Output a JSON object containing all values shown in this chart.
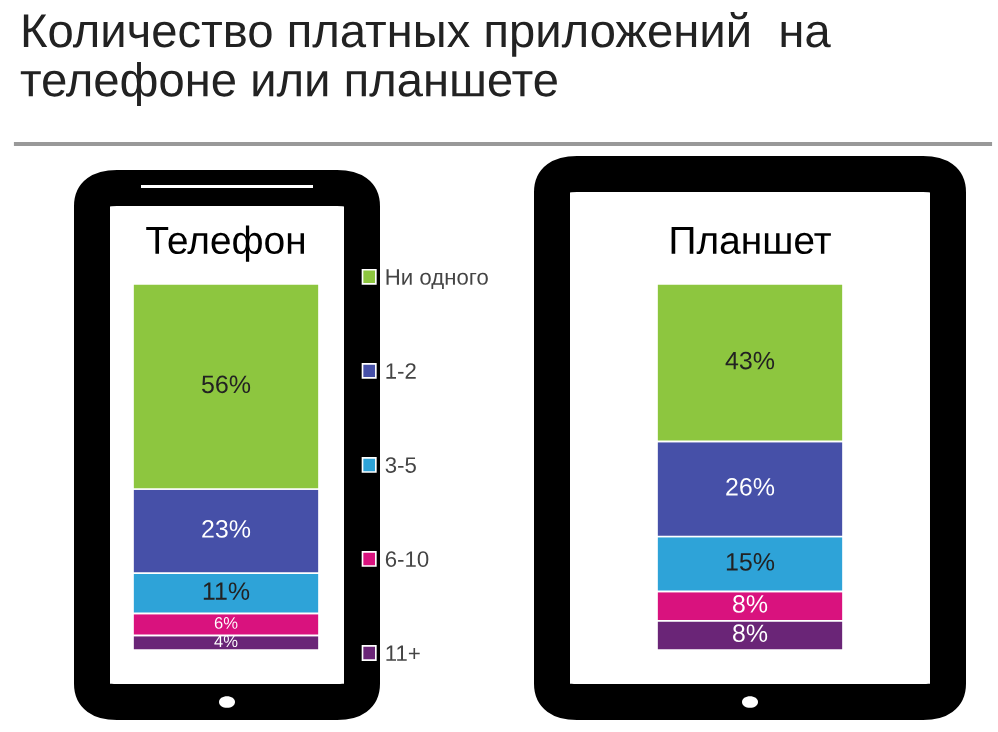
{
  "chart_data": {
    "type": "bar",
    "stacked": true,
    "title": "Количество платных приложений  на телефоне или планшете",
    "categories": [
      "Телефон",
      "Планшет"
    ],
    "series": [
      {
        "name": "11+",
        "color": "#6a2577",
        "values": [
          4,
          8
        ],
        "value_labels": [
          "4%",
          "8%"
        ]
      },
      {
        "name": "6-10",
        "color": "#d9127e",
        "values": [
          6,
          8
        ],
        "value_labels": [
          "6%",
          "8%"
        ]
      },
      {
        "name": "3-5",
        "color": "#2ea3d8",
        "values": [
          11,
          15
        ],
        "value_labels": [
          "11%",
          "15%"
        ]
      },
      {
        "name": "1-2",
        "color": "#4650a8",
        "values": [
          23,
          26
        ],
        "value_labels": [
          "23%",
          "26%"
        ]
      },
      {
        "name": "Ни одного",
        "color": "#8dc63f",
        "values": [
          56,
          43
        ],
        "value_labels": [
          "56%",
          "43%"
        ]
      }
    ],
    "legend": "center",
    "tick_labels": "x",
    "grid": false
  }
}
